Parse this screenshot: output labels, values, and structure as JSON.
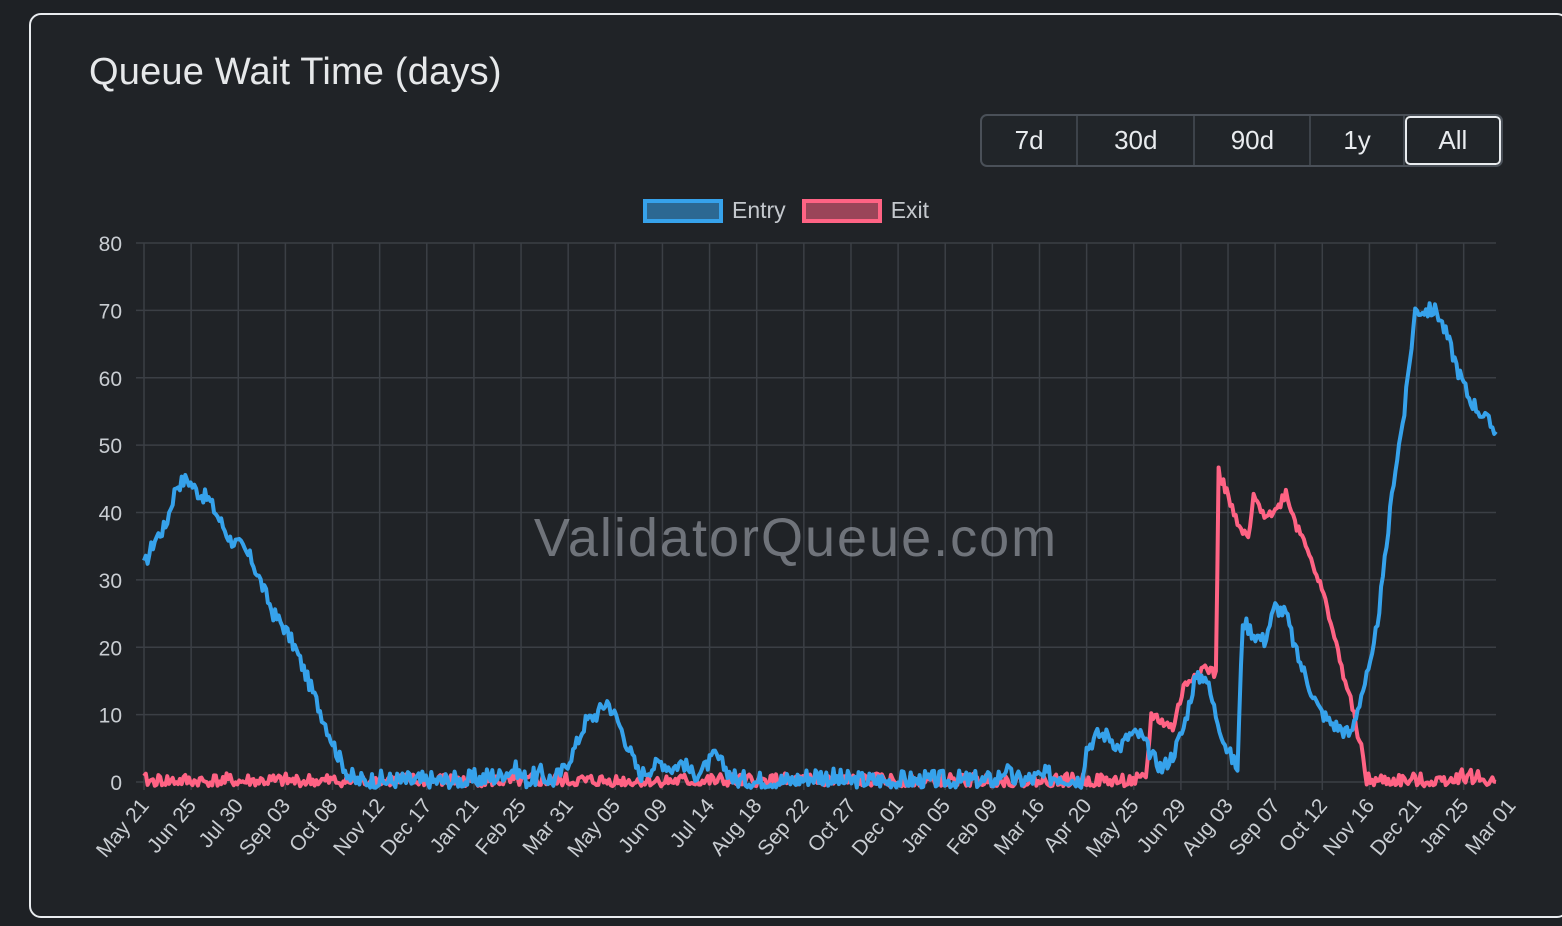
{
  "title": "Queue Wait Time (days)",
  "range_buttons": [
    {
      "label": "7d",
      "active": false
    },
    {
      "label": "30d",
      "active": false
    },
    {
      "label": "90d",
      "active": false
    },
    {
      "label": "1y",
      "active": false
    },
    {
      "label": "All",
      "active": true
    }
  ],
  "watermark": "ValidatorQueue.com",
  "colors": {
    "entry": "#36a2eb",
    "exit": "#ff6384",
    "grid": "#3b3f45",
    "tick_text": "#c9cdd2"
  },
  "chart_data": {
    "type": "line",
    "xlabel": "",
    "ylabel": "",
    "ylim": [
      0,
      80
    ],
    "y_ticks": [
      0,
      10,
      20,
      30,
      40,
      50,
      60,
      70,
      80
    ],
    "x_tick_labels": [
      "May 21",
      "Jun 25",
      "Jul 30",
      "Sep 03",
      "Oct 08",
      "Nov 12",
      "Dec 17",
      "Jan 21",
      "Feb 25",
      "Mar 31",
      "May 05",
      "Jun 09",
      "Jul 14",
      "Aug 18",
      "Sep 22",
      "Oct 27",
      "Dec 01",
      "Jan 05",
      "Feb 09",
      "Mar 16",
      "Apr 20",
      "May 25",
      "Jun 29",
      "Aug 03",
      "Sep 07",
      "Oct 12",
      "Nov 16",
      "Dec 21",
      "Jan 25",
      "Mar 01"
    ],
    "grid": true,
    "legend": "top-center",
    "series": [
      {
        "name": "Entry",
        "color": "#36a2eb",
        "points": [
          [
            0,
            32
          ],
          [
            2,
            36
          ],
          [
            4,
            38
          ],
          [
            6,
            44
          ],
          [
            8,
            45
          ],
          [
            10,
            43
          ],
          [
            12,
            42
          ],
          [
            14,
            39
          ],
          [
            16,
            36
          ],
          [
            18,
            35
          ],
          [
            20,
            33
          ],
          [
            22,
            29
          ],
          [
            24,
            25
          ],
          [
            26,
            23
          ],
          [
            28,
            20
          ],
          [
            30,
            16
          ],
          [
            32,
            12
          ],
          [
            34,
            8
          ],
          [
            36,
            4
          ],
          [
            38,
            1
          ],
          [
            39,
            0
          ],
          [
            50,
            0
          ],
          [
            60,
            0
          ],
          [
            66,
            1
          ],
          [
            69,
            2
          ],
          [
            71,
            0
          ],
          [
            74,
            1
          ],
          [
            76,
            0
          ],
          [
            78,
            2
          ],
          [
            80,
            5
          ],
          [
            82,
            9
          ],
          [
            84,
            10
          ],
          [
            86,
            12
          ],
          [
            88,
            9
          ],
          [
            90,
            5
          ],
          [
            92,
            1
          ],
          [
            94,
            2
          ],
          [
            96,
            3
          ],
          [
            98,
            2
          ],
          [
            100,
            3
          ],
          [
            102,
            1
          ],
          [
            104,
            2
          ],
          [
            106,
            4
          ],
          [
            108,
            2
          ],
          [
            110,
            0
          ],
          [
            120,
            0
          ],
          [
            125,
            1
          ],
          [
            130,
            0
          ],
          [
            140,
            0
          ],
          [
            150,
            0
          ],
          [
            158,
            0
          ],
          [
            160,
            2
          ],
          [
            162,
            0
          ],
          [
            170,
            1
          ],
          [
            174,
            0
          ],
          [
            175,
            5
          ],
          [
            177,
            7
          ],
          [
            179,
            7
          ],
          [
            181,
            5
          ],
          [
            183,
            7
          ],
          [
            185,
            7
          ],
          [
            187,
            4
          ],
          [
            189,
            2
          ],
          [
            191,
            4
          ],
          [
            193,
            8
          ],
          [
            195,
            15
          ],
          [
            197,
            16
          ],
          [
            199,
            10
          ],
          [
            201,
            5
          ],
          [
            203,
            2
          ],
          [
            204,
            24
          ],
          [
            206,
            22
          ],
          [
            208,
            21
          ],
          [
            210,
            26
          ],
          [
            212,
            25
          ],
          [
            214,
            19
          ],
          [
            216,
            15
          ],
          [
            218,
            11
          ],
          [
            220,
            9
          ],
          [
            222,
            8
          ],
          [
            224,
            7
          ],
          [
            226,
            13
          ],
          [
            228,
            18
          ],
          [
            230,
            30
          ],
          [
            232,
            45
          ],
          [
            234,
            55
          ],
          [
            236,
            70
          ],
          [
            238,
            70
          ],
          [
            240,
            70
          ],
          [
            242,
            66
          ],
          [
            244,
            61
          ],
          [
            246,
            57
          ],
          [
            248,
            55
          ],
          [
            250,
            53
          ],
          [
            251,
            52
          ]
        ]
      },
      {
        "name": "Exit",
        "color": "#ff6384",
        "points": [
          [
            0,
            0
          ],
          [
            10,
            0
          ],
          [
            20,
            0
          ],
          [
            30,
            0
          ],
          [
            40,
            0
          ],
          [
            50,
            0
          ],
          [
            60,
            0
          ],
          [
            70,
            0
          ],
          [
            80,
            0
          ],
          [
            90,
            0
          ],
          [
            100,
            0
          ],
          [
            110,
            0
          ],
          [
            120,
            0
          ],
          [
            130,
            0
          ],
          [
            140,
            0
          ],
          [
            150,
            0
          ],
          [
            160,
            0
          ],
          [
            170,
            0
          ],
          [
            180,
            0
          ],
          [
            186,
            0
          ],
          [
            187,
            10
          ],
          [
            189,
            9
          ],
          [
            191,
            8
          ],
          [
            193,
            14
          ],
          [
            195,
            16
          ],
          [
            197,
            17
          ],
          [
            199,
            16
          ],
          [
            199.5,
            46
          ],
          [
            201,
            43
          ],
          [
            203,
            38
          ],
          [
            205,
            36
          ],
          [
            206,
            42
          ],
          [
            208,
            40
          ],
          [
            210,
            40
          ],
          [
            212,
            43
          ],
          [
            214,
            38
          ],
          [
            216,
            35
          ],
          [
            218,
            30
          ],
          [
            220,
            25
          ],
          [
            222,
            18
          ],
          [
            224,
            12
          ],
          [
            226,
            5
          ],
          [
            227,
            0
          ],
          [
            230,
            0
          ],
          [
            240,
            0
          ],
          [
            245,
            1
          ],
          [
            250,
            0
          ],
          [
            251,
            0
          ]
        ]
      }
    ]
  }
}
